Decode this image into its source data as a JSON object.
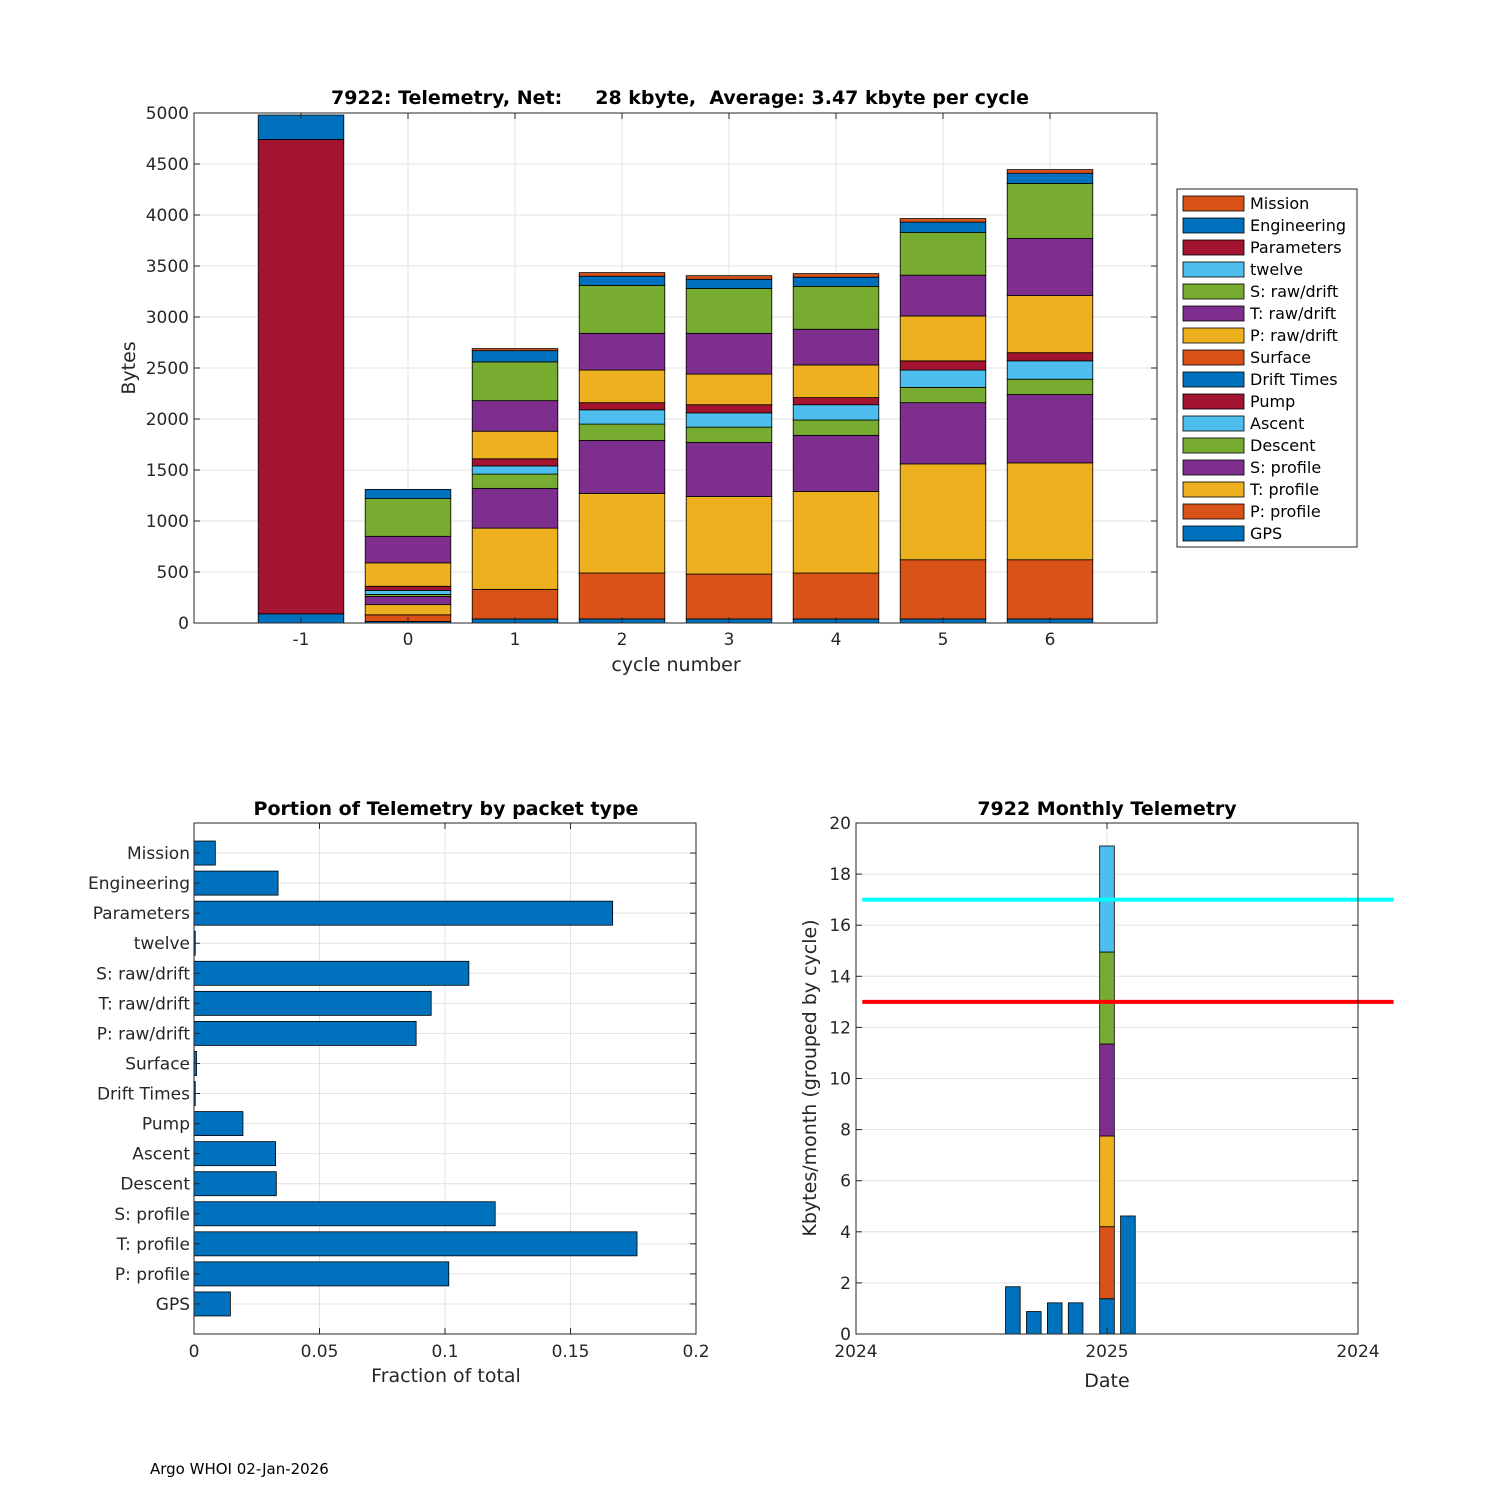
{
  "colors": {
    "orange": "#D95319",
    "blue": "#0072BD",
    "red": "#A2142F",
    "cyan": "#4DBEEE",
    "green": "#77AC30",
    "purple": "#7E2F8E",
    "yellow": "#EDB120",
    "line_cyan": "#00FFFF",
    "line_red": "#FF0000",
    "grid": "#e3e3e3"
  },
  "footer": "Argo WHOI 02-Jan-2026",
  "chart_data": [
    {
      "type": "bar",
      "stacked": true,
      "title": "7922: Telemetry, Net:     28 kbyte,  Average: 3.47 kbyte per cycle",
      "xlabel": "cycle number",
      "ylabel": "Bytes",
      "ylim": [
        0,
        5000
      ],
      "yticks": [
        0,
        500,
        1000,
        1500,
        2000,
        2500,
        3000,
        3500,
        4000,
        4500,
        5000
      ],
      "categories": [
        "-1",
        "0",
        "1",
        "2",
        "3",
        "4",
        "5",
        "6"
      ],
      "legend_position": "outside-right",
      "series": [
        {
          "name": "GPS",
          "color": "#0072BD",
          "values": [
            90,
            15,
            40,
            40,
            40,
            40,
            40,
            40
          ]
        },
        {
          "name": "P: profile",
          "color": "#D95319",
          "values": [
            0,
            65,
            290,
            450,
            440,
            450,
            580,
            580
          ]
        },
        {
          "name": "T: profile",
          "color": "#EDB120",
          "values": [
            0,
            100,
            600,
            780,
            760,
            800,
            940,
            950
          ]
        },
        {
          "name": "S: profile",
          "color": "#7E2F8E",
          "values": [
            0,
            80,
            390,
            520,
            530,
            550,
            600,
            670
          ]
        },
        {
          "name": "Descent",
          "color": "#77AC30",
          "values": [
            0,
            20,
            140,
            160,
            150,
            150,
            150,
            150
          ]
        },
        {
          "name": "Ascent",
          "color": "#4DBEEE",
          "values": [
            0,
            40,
            80,
            140,
            140,
            150,
            170,
            180
          ]
        },
        {
          "name": "Pump",
          "color": "#A2142F",
          "values": [
            0,
            40,
            70,
            70,
            80,
            70,
            90,
            80
          ]
        },
        {
          "name": "Drift Times",
          "color": "#0072BD",
          "values": [
            0,
            0,
            0,
            0,
            0,
            0,
            0,
            0
          ]
        },
        {
          "name": "Surface",
          "color": "#D95319",
          "values": [
            0,
            0,
            0,
            0,
            0,
            0,
            0,
            0
          ]
        },
        {
          "name": "P: raw/drift",
          "color": "#EDB120",
          "values": [
            0,
            230,
            270,
            320,
            300,
            320,
            440,
            560
          ]
        },
        {
          "name": "T: raw/drift",
          "color": "#7E2F8E",
          "values": [
            0,
            260,
            300,
            360,
            400,
            350,
            400,
            560
          ]
        },
        {
          "name": "S: raw/drift",
          "color": "#77AC30",
          "values": [
            0,
            370,
            380,
            470,
            440,
            420,
            420,
            540
          ]
        },
        {
          "name": "twelve",
          "color": "#4DBEEE",
          "values": [
            0,
            0,
            0,
            0,
            0,
            0,
            0,
            0
          ]
        },
        {
          "name": "Parameters",
          "color": "#A2142F",
          "values": [
            4650,
            0,
            0,
            0,
            0,
            0,
            0,
            0
          ]
        },
        {
          "name": "Engineering",
          "color": "#0072BD",
          "values": [
            240,
            90,
            110,
            90,
            90,
            90,
            100,
            100
          ]
        },
        {
          "name": "Mission",
          "color": "#D95319",
          "values": [
            0,
            0,
            20,
            35,
            35,
            35,
            35,
            35
          ]
        }
      ]
    },
    {
      "type": "barh",
      "title": "Portion of Telemetry by packet type",
      "xlabel": "Fraction of total",
      "ylabel": "",
      "xlim": [
        0,
        0.2
      ],
      "xticks": [
        0,
        0.05,
        0.1,
        0.15,
        0.2
      ],
      "xtick_labels": [
        "0",
        "0.05",
        "0.1",
        "0.15",
        "0.2"
      ],
      "color": "#0072BD",
      "categories": [
        "GPS",
        "P: profile",
        "T: profile",
        "S: profile",
        "Descent",
        "Ascent",
        "Pump",
        "Drift Times",
        "Surface",
        "P: raw/drift",
        "T: raw/drift",
        "S: raw/drift",
        "twelve",
        "Parameters",
        "Engineering",
        "Mission"
      ],
      "values": [
        0.0145,
        0.1015,
        0.1765,
        0.12,
        0.0328,
        0.0325,
        0.0195,
        0.0005,
        0.001,
        0.0885,
        0.0945,
        0.1095,
        0.0005,
        0.1668,
        0.0335,
        0.0085
      ]
    },
    {
      "type": "bar",
      "stacked": true,
      "title": "7922 Monthly Telemetry",
      "xlabel": "Date",
      "ylabel": "Kbytes/month (grouped by cycle)",
      "ylim": [
        0,
        20
      ],
      "yticks": [
        0,
        2,
        4,
        6,
        8,
        10,
        12,
        14,
        16,
        18,
        20
      ],
      "xlim_months": [
        0,
        12
      ],
      "xticks": [
        {
          "month": 0,
          "label": "2024"
        },
        {
          "month": 6,
          "label": "2025"
        },
        {
          "month": 12,
          "label": "2024"
        }
      ],
      "bars": [
        {
          "month": 3.75,
          "segments": [
            {
              "color": "#0072BD",
              "value": 1.85
            }
          ]
        },
        {
          "month": 4.25,
          "segments": [
            {
              "color": "#0072BD",
              "value": 0.88
            }
          ]
        },
        {
          "month": 4.75,
          "segments": [
            {
              "color": "#0072BD",
              "value": 1.22
            }
          ]
        },
        {
          "month": 5.25,
          "segments": [
            {
              "color": "#0072BD",
              "value": 1.22
            }
          ]
        },
        {
          "month": 6.0,
          "segments": [
            {
              "color": "#0072BD",
              "value": 1.38
            },
            {
              "color": "#D95319",
              "value": 2.82
            },
            {
              "color": "#EDB120",
              "value": 3.55
            },
            {
              "color": "#7E2F8E",
              "value": 3.6
            },
            {
              "color": "#77AC30",
              "value": 3.6
            },
            {
              "color": "#4DBEEE",
              "value": 4.15
            }
          ]
        },
        {
          "month": 6.5,
          "segments": [
            {
              "color": "#0072BD",
              "value": 4.62
            }
          ]
        }
      ],
      "hlines": [
        {
          "value": 17,
          "color": "#00FFFF",
          "from_month": 0.15,
          "to_month": 12.85
        },
        {
          "value": 13,
          "color": "#FF0000",
          "from_month": 0.15,
          "to_month": 12.85
        }
      ]
    }
  ]
}
